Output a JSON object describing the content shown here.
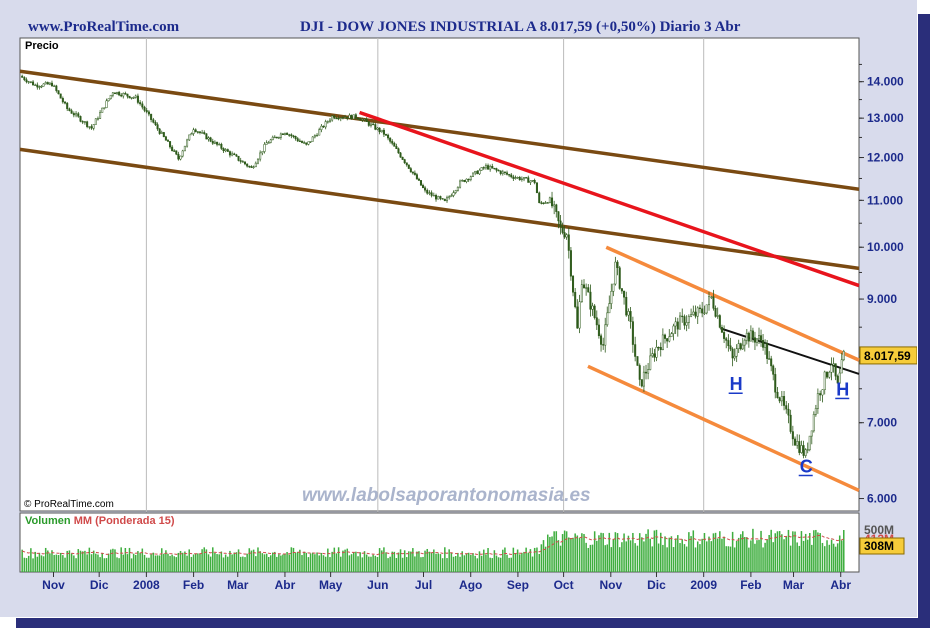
{
  "header": {
    "site": "www.ProRealTime.com",
    "title": "DJI - DOW JONES INDUSTRIAL A    8.017,59 (+0,50%)    Diario  3 Abr"
  },
  "price_panel": {
    "label": "Precio",
    "copyright": "© ProRealTime.com",
    "watermark": "www.labolsaporantonomasia.es",
    "last_price_tag": "8.017,59"
  },
  "volume_panel": {
    "label_prefix": "Volumen ",
    "label_mm": "MM (Ponderada 15)",
    "tag_top": "500M",
    "tag_mid": "412M",
    "tag_last": "308M"
  },
  "annotations": [
    {
      "text": "H",
      "date": "2009-01-22",
      "price": 7600
    },
    {
      "text": "C",
      "date": "2009-03-09",
      "price": 6430
    },
    {
      "text": "H",
      "date": "2009-04-02",
      "price": 7520
    }
  ],
  "colors": {
    "frame": "#d8dbec",
    "shadow": "#2a2e7a",
    "axis_text": "#1c2a8c",
    "long_channel": "#7a4a12",
    "red_trend": "#e8141c",
    "orange_channel": "#f58a3c",
    "neckline": "#111111",
    "candle": "#2d5a1a",
    "volume_bar": "#3fae3f",
    "volume_mm": "#d04a4a",
    "price_tag_bg": "#f6cc3a",
    "annotation": "#1a3ac8",
    "watermark": "#aab4cc"
  },
  "chart_data": {
    "type": "line",
    "title": "DJI - DOW JONES INDUSTRIAL A",
    "ylabel": "Precio",
    "y_scale": "log",
    "ylim": [
      5850,
      15300
    ],
    "y_ticks": [
      "14.000",
      "13.000",
      "12.000",
      "11.000",
      "10.000",
      "9.000",
      "7.000",
      "6.000"
    ],
    "y_tick_values": [
      14000,
      13000,
      12000,
      11000,
      10000,
      9000,
      7000,
      6000
    ],
    "x_range": [
      "2007-10-10",
      "2009-04-13"
    ],
    "x_ticks": [
      {
        "label": "Nov",
        "date": "2007-11-01"
      },
      {
        "label": "Dic",
        "date": "2007-12-01"
      },
      {
        "label": "2008",
        "date": "2008-01-01"
      },
      {
        "label": "Feb",
        "date": "2008-02-01"
      },
      {
        "label": "Mar",
        "date": "2008-03-01"
      },
      {
        "label": "Abr",
        "date": "2008-04-01"
      },
      {
        "label": "May",
        "date": "2008-05-01"
      },
      {
        "label": "Jun",
        "date": "2008-06-01"
      },
      {
        "label": "Jul",
        "date": "2008-07-01"
      },
      {
        "label": "Ago",
        "date": "2008-08-01"
      },
      {
        "label": "Sep",
        "date": "2008-09-01"
      },
      {
        "label": "Oct",
        "date": "2008-10-01"
      },
      {
        "label": "Nov",
        "date": "2008-11-01"
      },
      {
        "label": "Dic",
        "date": "2008-12-01"
      },
      {
        "label": "2009",
        "date": "2009-01-01"
      },
      {
        "label": "Feb",
        "date": "2009-02-01"
      },
      {
        "label": "Mar",
        "date": "2009-03-01"
      },
      {
        "label": "Abr",
        "date": "2009-04-01"
      }
    ],
    "x_gridlines": [
      "2008-01-01",
      "2008-06-01",
      "2008-10-01",
      "2009-01-01"
    ],
    "series": [
      {
        "values": [
          {
            "date": "2007-10-10",
            "close": 14160
          },
          {
            "date": "2007-10-20",
            "close": 13900
          },
          {
            "date": "2007-10-31",
            "close": 13930
          },
          {
            "date": "2007-11-10",
            "close": 13250
          },
          {
            "date": "2007-11-26",
            "close": 12740
          },
          {
            "date": "2007-12-10",
            "close": 13720
          },
          {
            "date": "2007-12-25",
            "close": 13550
          },
          {
            "date": "2008-01-07",
            "close": 12800
          },
          {
            "date": "2008-01-22",
            "close": 11970
          },
          {
            "date": "2008-02-01",
            "close": 12740
          },
          {
            "date": "2008-02-15",
            "close": 12350
          },
          {
            "date": "2008-03-10",
            "close": 11740
          },
          {
            "date": "2008-03-20",
            "close": 12360
          },
          {
            "date": "2008-04-01",
            "close": 12650
          },
          {
            "date": "2008-04-15",
            "close": 12300
          },
          {
            "date": "2008-05-02",
            "close": 13050
          },
          {
            "date": "2008-05-19",
            "close": 13030
          },
          {
            "date": "2008-06-05",
            "close": 12600
          },
          {
            "date": "2008-06-20",
            "close": 11840
          },
          {
            "date": "2008-07-02",
            "close": 11200
          },
          {
            "date": "2008-07-15",
            "close": 10960
          },
          {
            "date": "2008-07-25",
            "close": 11400
          },
          {
            "date": "2008-08-11",
            "close": 11780
          },
          {
            "date": "2008-08-29",
            "close": 11540
          },
          {
            "date": "2008-09-12",
            "close": 11420
          },
          {
            "date": "2008-09-15",
            "close": 10920
          },
          {
            "date": "2008-09-22",
            "close": 11010
          },
          {
            "date": "2008-09-29",
            "close": 10370
          },
          {
            "date": "2008-10-03",
            "close": 10300
          },
          {
            "date": "2008-10-10",
            "close": 8450
          },
          {
            "date": "2008-10-13",
            "close": 9390
          },
          {
            "date": "2008-10-27",
            "close": 8200
          },
          {
            "date": "2008-11-04",
            "close": 9630
          },
          {
            "date": "2008-11-14",
            "close": 8500
          },
          {
            "date": "2008-11-20",
            "close": 7550
          },
          {
            "date": "2008-12-01",
            "close": 8150
          },
          {
            "date": "2008-12-15",
            "close": 8560
          },
          {
            "date": "2008-12-31",
            "close": 8780
          },
          {
            "date": "2009-01-06",
            "close": 9020
          },
          {
            "date": "2009-01-20",
            "close": 7950
          },
          {
            "date": "2009-01-28",
            "close": 8370
          },
          {
            "date": "2009-02-09",
            "close": 8270
          },
          {
            "date": "2009-02-17",
            "close": 7550
          },
          {
            "date": "2009-03-02",
            "close": 6760
          },
          {
            "date": "2009-03-09",
            "close": 6550
          },
          {
            "date": "2009-03-17",
            "close": 7400
          },
          {
            "date": "2009-03-26",
            "close": 7920
          },
          {
            "date": "2009-03-30",
            "close": 7520
          },
          {
            "date": "2009-04-03",
            "close": 8017.59
          }
        ]
      }
    ],
    "trendlines": [
      {
        "name": "long channel top",
        "from": {
          "date": "2007-10-10",
          "price": 14300
        },
        "to": {
          "date": "2009-04-13",
          "price": 11250
        }
      },
      {
        "name": "long channel bottom",
        "from": {
          "date": "2007-10-10",
          "price": 12200
        },
        "to": {
          "date": "2009-04-13",
          "price": 9580
        }
      },
      {
        "name": "red downtrend",
        "from": {
          "date": "2008-05-20",
          "price": 13150
        },
        "to": {
          "date": "2009-04-13",
          "price": 9250
        }
      },
      {
        "name": "orange channel top",
        "from": {
          "date": "2008-10-29",
          "price": 10000
        },
        "to": {
          "date": "2009-04-13",
          "price": 7950
        }
      },
      {
        "name": "orange channel bottom",
        "from": {
          "date": "2008-10-17",
          "price": 7850
        },
        "to": {
          "date": "2009-04-13",
          "price": 6100
        }
      },
      {
        "name": "neckline",
        "from": {
          "date": "2009-01-12",
          "price": 8480
        },
        "to": {
          "date": "2009-04-13",
          "price": 7730
        }
      }
    ],
    "volume": {
      "name": "Volumen",
      "mm": "MM (Ponderada 15)",
      "approx_range_M": [
        200,
        550
      ],
      "last_M": 308
    }
  }
}
